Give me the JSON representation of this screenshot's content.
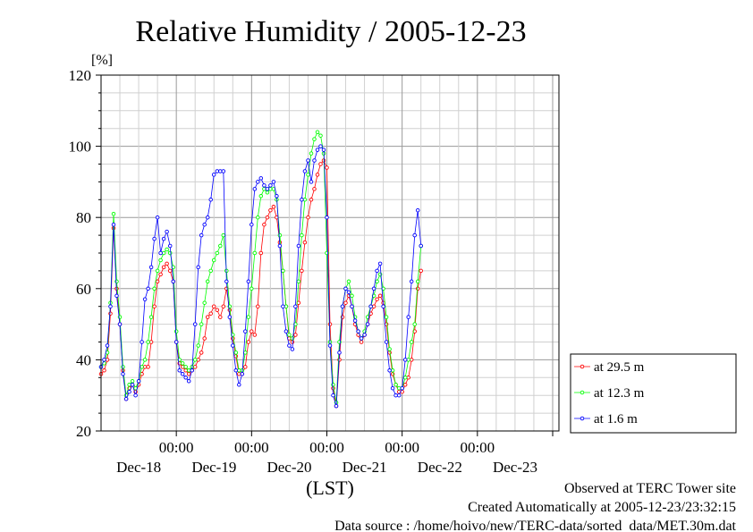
{
  "chart_data": {
    "type": "line",
    "title": "Relative Humidity / 2005-12-23",
    "ylabel": "[%]",
    "xlabel": "(LST)",
    "ylim": [
      20,
      120
    ],
    "yticks": [
      20,
      40,
      60,
      80,
      100,
      120
    ],
    "x_unit": "hours since 2005-12-17 00:00 LST",
    "xlim": [
      6,
      152
    ],
    "grid": true,
    "time_ticks": [
      {
        "x": 30,
        "time": "00:00",
        "day": "Dec-18"
      },
      {
        "x": 54,
        "time": "00:00",
        "day": "Dec-19"
      },
      {
        "x": 78,
        "time": "00:00",
        "day": "Dec-20"
      },
      {
        "x": 102,
        "time": "00:00",
        "day": "Dec-21"
      },
      {
        "x": 126,
        "time": "00:00",
        "day": "Dec-22"
      },
      {
        "x": 150,
        "time": "",
        "day": "Dec-23"
      }
    ],
    "legend_position": "right",
    "series": [
      {
        "name": "at 29.5 m",
        "color": "#ff0000",
        "points": [
          [
            6,
            36
          ],
          [
            7,
            37
          ],
          [
            8,
            40
          ],
          [
            9,
            53
          ],
          [
            10,
            77
          ],
          [
            11,
            60
          ],
          [
            12,
            50
          ],
          [
            13,
            37
          ],
          [
            14,
            29
          ],
          [
            15,
            32
          ],
          [
            16,
            33
          ],
          [
            17,
            31
          ],
          [
            18,
            33
          ],
          [
            19,
            36
          ],
          [
            20,
            38
          ],
          [
            21,
            38
          ],
          [
            22,
            45
          ],
          [
            23,
            55
          ],
          [
            24,
            62
          ],
          [
            25,
            64
          ],
          [
            26,
            66
          ],
          [
            27,
            67
          ],
          [
            28,
            65
          ],
          [
            29,
            62
          ],
          [
            30,
            45
          ],
          [
            31,
            39
          ],
          [
            32,
            38
          ],
          [
            33,
            37
          ],
          [
            34,
            36
          ],
          [
            35,
            37
          ],
          [
            36,
            38
          ],
          [
            37,
            40
          ],
          [
            38,
            42
          ],
          [
            39,
            46
          ],
          [
            40,
            52
          ],
          [
            41,
            53
          ],
          [
            42,
            55
          ],
          [
            43,
            54
          ],
          [
            44,
            52
          ],
          [
            45,
            55
          ],
          [
            46,
            60
          ],
          [
            47,
            54
          ],
          [
            48,
            46
          ],
          [
            49,
            41
          ],
          [
            50,
            36
          ],
          [
            51,
            36
          ],
          [
            52,
            38
          ],
          [
            53,
            45
          ],
          [
            54,
            48
          ],
          [
            55,
            47
          ],
          [
            56,
            55
          ],
          [
            57,
            70
          ],
          [
            58,
            78
          ],
          [
            59,
            80
          ],
          [
            60,
            82
          ],
          [
            61,
            83
          ],
          [
            62,
            80
          ],
          [
            63,
            73
          ],
          [
            64,
            65
          ],
          [
            65,
            55
          ],
          [
            66,
            46
          ],
          [
            67,
            45
          ],
          [
            68,
            47
          ],
          [
            69,
            56
          ],
          [
            70,
            65
          ],
          [
            71,
            73
          ],
          [
            72,
            80
          ],
          [
            73,
            85
          ],
          [
            74,
            88
          ],
          [
            75,
            92
          ],
          [
            76,
            95
          ],
          [
            77,
            96
          ],
          [
            78,
            94
          ],
          [
            79,
            50
          ],
          [
            80,
            32
          ],
          [
            81,
            27
          ],
          [
            82,
            40
          ],
          [
            83,
            52
          ],
          [
            84,
            56
          ],
          [
            85,
            58
          ],
          [
            86,
            55
          ],
          [
            87,
            50
          ],
          [
            88,
            47
          ],
          [
            89,
            45
          ],
          [
            90,
            47
          ],
          [
            91,
            50
          ],
          [
            92,
            53
          ],
          [
            93,
            55
          ],
          [
            94,
            57
          ],
          [
            95,
            58
          ],
          [
            96,
            56
          ],
          [
            97,
            50
          ],
          [
            98,
            42
          ],
          [
            99,
            36
          ],
          [
            100,
            33
          ],
          [
            101,
            31
          ],
          [
            102,
            31
          ],
          [
            103,
            33
          ],
          [
            104,
            35
          ],
          [
            105,
            40
          ],
          [
            106,
            48
          ],
          [
            107,
            60
          ],
          [
            108,
            65
          ]
        ]
      },
      {
        "name": "at 12.3 m",
        "color": "#00ff00",
        "points": [
          [
            6,
            38
          ],
          [
            7,
            39
          ],
          [
            8,
            42
          ],
          [
            9,
            56
          ],
          [
            10,
            81
          ],
          [
            11,
            62
          ],
          [
            12,
            52
          ],
          [
            13,
            38
          ],
          [
            14,
            30
          ],
          [
            15,
            33
          ],
          [
            16,
            34
          ],
          [
            17,
            32
          ],
          [
            18,
            34
          ],
          [
            19,
            38
          ],
          [
            20,
            40
          ],
          [
            21,
            45
          ],
          [
            22,
            52
          ],
          [
            23,
            60
          ],
          [
            24,
            65
          ],
          [
            25,
            68
          ],
          [
            26,
            70
          ],
          [
            27,
            71
          ],
          [
            28,
            70
          ],
          [
            29,
            66
          ],
          [
            30,
            48
          ],
          [
            31,
            40
          ],
          [
            32,
            39
          ],
          [
            33,
            38
          ],
          [
            34,
            37
          ],
          [
            35,
            38
          ],
          [
            36,
            40
          ],
          [
            37,
            44
          ],
          [
            38,
            50
          ],
          [
            39,
            56
          ],
          [
            40,
            62
          ],
          [
            41,
            65
          ],
          [
            42,
            68
          ],
          [
            43,
            70
          ],
          [
            44,
            72
          ],
          [
            45,
            75
          ],
          [
            46,
            65
          ],
          [
            47,
            55
          ],
          [
            48,
            47
          ],
          [
            49,
            42
          ],
          [
            50,
            37
          ],
          [
            51,
            37
          ],
          [
            52,
            42
          ],
          [
            53,
            52
          ],
          [
            54,
            60
          ],
          [
            55,
            70
          ],
          [
            56,
            80
          ],
          [
            57,
            86
          ],
          [
            58,
            88
          ],
          [
            59,
            87
          ],
          [
            60,
            88
          ],
          [
            61,
            88
          ],
          [
            62,
            85
          ],
          [
            63,
            75
          ],
          [
            64,
            65
          ],
          [
            65,
            55
          ],
          [
            66,
            47
          ],
          [
            67,
            46
          ],
          [
            68,
            50
          ],
          [
            69,
            62
          ],
          [
            70,
            75
          ],
          [
            71,
            85
          ],
          [
            72,
            92
          ],
          [
            73,
            98
          ],
          [
            74,
            102
          ],
          [
            75,
            104
          ],
          [
            76,
            103
          ],
          [
            77,
            98
          ],
          [
            78,
            70
          ],
          [
            79,
            45
          ],
          [
            80,
            33
          ],
          [
            81,
            28
          ],
          [
            82,
            45
          ],
          [
            83,
            55
          ],
          [
            84,
            60
          ],
          [
            85,
            62
          ],
          [
            86,
            58
          ],
          [
            87,
            52
          ],
          [
            88,
            48
          ],
          [
            89,
            46
          ],
          [
            90,
            48
          ],
          [
            91,
            52
          ],
          [
            92,
            55
          ],
          [
            93,
            58
          ],
          [
            94,
            62
          ],
          [
            95,
            64
          ],
          [
            96,
            60
          ],
          [
            97,
            52
          ],
          [
            98,
            43
          ],
          [
            99,
            37
          ],
          [
            100,
            33
          ],
          [
            101,
            32
          ],
          [
            102,
            32
          ],
          [
            103,
            35
          ],
          [
            104,
            40
          ],
          [
            105,
            45
          ],
          [
            106,
            50
          ],
          [
            107,
            62
          ],
          [
            108,
            72
          ]
        ]
      },
      {
        "name": "at 1.6 m",
        "color": "#0000ff",
        "points": [
          [
            6,
            38
          ],
          [
            7,
            40
          ],
          [
            8,
            44
          ],
          [
            9,
            55
          ],
          [
            10,
            78
          ],
          [
            11,
            58
          ],
          [
            12,
            50
          ],
          [
            13,
            36
          ],
          [
            14,
            29
          ],
          [
            15,
            31
          ],
          [
            16,
            33
          ],
          [
            17,
            30
          ],
          [
            18,
            34
          ],
          [
            19,
            45
          ],
          [
            20,
            57
          ],
          [
            21,
            60
          ],
          [
            22,
            66
          ],
          [
            23,
            74
          ],
          [
            24,
            80
          ],
          [
            25,
            70
          ],
          [
            26,
            74
          ],
          [
            27,
            76
          ],
          [
            28,
            72
          ],
          [
            29,
            62
          ],
          [
            30,
            45
          ],
          [
            31,
            37
          ],
          [
            32,
            36
          ],
          [
            33,
            35
          ],
          [
            34,
            34
          ],
          [
            35,
            37
          ],
          [
            36,
            50
          ],
          [
            37,
            66
          ],
          [
            38,
            75
          ],
          [
            39,
            78
          ],
          [
            40,
            80
          ],
          [
            41,
            85
          ],
          [
            42,
            92
          ],
          [
            43,
            93
          ],
          [
            44,
            93
          ],
          [
            45,
            93
          ],
          [
            46,
            62
          ],
          [
            47,
            52
          ],
          [
            48,
            44
          ],
          [
            49,
            37
          ],
          [
            50,
            33
          ],
          [
            51,
            36
          ],
          [
            52,
            48
          ],
          [
            53,
            62
          ],
          [
            54,
            78
          ],
          [
            55,
            88
          ],
          [
            56,
            90
          ],
          [
            57,
            91
          ],
          [
            58,
            89
          ],
          [
            59,
            88
          ],
          [
            60,
            89
          ],
          [
            61,
            90
          ],
          [
            62,
            86
          ],
          [
            63,
            72
          ],
          [
            64,
            55
          ],
          [
            65,
            48
          ],
          [
            66,
            44
          ],
          [
            67,
            43
          ],
          [
            68,
            55
          ],
          [
            69,
            72
          ],
          [
            70,
            85
          ],
          [
            71,
            93
          ],
          [
            72,
            96
          ],
          [
            73,
            90
          ],
          [
            74,
            96
          ],
          [
            75,
            99
          ],
          [
            76,
            100
          ],
          [
            77,
            99
          ],
          [
            78,
            80
          ],
          [
            79,
            44
          ],
          [
            80,
            30
          ],
          [
            81,
            27
          ],
          [
            82,
            42
          ],
          [
            83,
            55
          ],
          [
            84,
            60
          ],
          [
            85,
            59
          ],
          [
            86,
            55
          ],
          [
            87,
            51
          ],
          [
            88,
            48
          ],
          [
            89,
            46
          ],
          [
            90,
            47
          ],
          [
            91,
            50
          ],
          [
            92,
            55
          ],
          [
            93,
            60
          ],
          [
            94,
            65
          ],
          [
            95,
            67
          ],
          [
            96,
            55
          ],
          [
            97,
            45
          ],
          [
            98,
            37
          ],
          [
            99,
            32
          ],
          [
            100,
            30
          ],
          [
            101,
            30
          ],
          [
            102,
            32
          ],
          [
            103,
            40
          ],
          [
            104,
            52
          ],
          [
            105,
            62
          ],
          [
            106,
            75
          ],
          [
            107,
            82
          ],
          [
            108,
            72
          ]
        ]
      }
    ]
  },
  "footer": {
    "line1": "Observed at TERC Tower site",
    "line2": "Created Automatically at 2005-12-23/23:32:15",
    "line3": "Data source : /home/hoivo/new/TERC-data/sorted  data/MET.30m.dat"
  }
}
